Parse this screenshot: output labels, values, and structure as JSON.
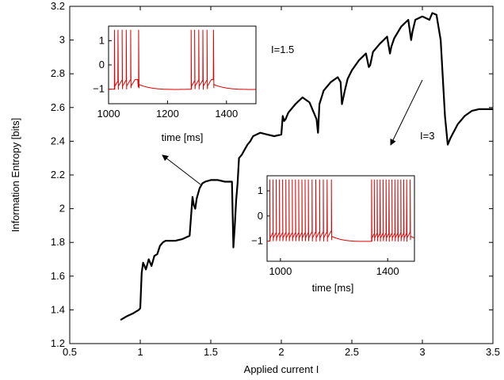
{
  "chart_data": [
    {
      "type": "line",
      "title": "",
      "xlabel": "Applied current I",
      "ylabel": "Information Entropy [bits]",
      "xlim": [
        0.5,
        3.5
      ],
      "ylim": [
        1.2,
        3.2
      ],
      "xticks": [
        "0.5",
        "1",
        "1.5",
        "2",
        "2.5",
        "3",
        "3.5"
      ],
      "yticks": [
        "1.2",
        "1.4",
        "1.6",
        "1.8",
        "2",
        "2.2",
        "2.4",
        "2.6",
        "2.8",
        "3",
        "3.2"
      ],
      "grid": false,
      "line_color": "#000000",
      "x": [
        0.86,
        0.9,
        0.95,
        0.99,
        1.0,
        1.01,
        1.02,
        1.04,
        1.06,
        1.08,
        1.1,
        1.12,
        1.14,
        1.16,
        1.18,
        1.2,
        1.22,
        1.24,
        1.25,
        1.3,
        1.35,
        1.37,
        1.38,
        1.39,
        1.4,
        1.42,
        1.44,
        1.46,
        1.5,
        1.55,
        1.6,
        1.65,
        1.66,
        1.67,
        1.68,
        1.69,
        1.7,
        1.72,
        1.74,
        1.76,
        1.78,
        1.8,
        1.85,
        1.9,
        1.95,
        2.0,
        2.01,
        2.02,
        2.03,
        2.05,
        2.1,
        2.15,
        2.2,
        2.25,
        2.26,
        2.27,
        2.3,
        2.35,
        2.4,
        2.42,
        2.43,
        2.45,
        2.47,
        2.5,
        2.55,
        2.6,
        2.62,
        2.63,
        2.65,
        2.7,
        2.75,
        2.77,
        2.78,
        2.8,
        2.85,
        2.9,
        2.92,
        2.93,
        2.95,
        3.0,
        3.05,
        3.07,
        3.1,
        3.13,
        3.16,
        3.18,
        3.2,
        3.25,
        3.3,
        3.35,
        3.4,
        3.45,
        3.5
      ],
      "y": [
        1.34,
        1.36,
        1.38,
        1.4,
        1.41,
        1.62,
        1.68,
        1.64,
        1.7,
        1.66,
        1.72,
        1.73,
        1.78,
        1.8,
        1.81,
        1.81,
        1.81,
        1.81,
        1.81,
        1.82,
        1.84,
        2.07,
        2.02,
        2.0,
        2.06,
        2.12,
        2.15,
        2.16,
        2.17,
        2.17,
        2.16,
        2.16,
        1.77,
        1.9,
        2.05,
        2.15,
        2.3,
        2.32,
        2.35,
        2.38,
        2.4,
        2.43,
        2.45,
        2.44,
        2.43,
        2.44,
        2.55,
        2.52,
        2.53,
        2.57,
        2.62,
        2.66,
        2.63,
        2.53,
        2.45,
        2.62,
        2.7,
        2.75,
        2.78,
        2.75,
        2.62,
        2.7,
        2.77,
        2.82,
        2.88,
        2.92,
        2.84,
        2.85,
        2.93,
        2.98,
        3.02,
        2.92,
        2.96,
        3.01,
        3.08,
        3.12,
        3.0,
        3.05,
        3.12,
        3.14,
        3.12,
        3.16,
        3.15,
        3.0,
        2.55,
        2.38,
        2.42,
        2.5,
        2.55,
        2.58,
        2.59,
        2.59,
        2.59
      ]
    },
    {
      "type": "line",
      "name": "inset-1",
      "xlabel": "time [ms]",
      "ylabel": "",
      "xlim": [
        1000,
        1500
      ],
      "ylim": [
        -1.6,
        1.6
      ],
      "xticks": [
        "1000",
        "1200",
        "1400"
      ],
      "yticks": [
        "1",
        "0",
        "−1"
      ],
      "line_color": "#dd0000",
      "annotation": "I=1.5",
      "burst_spikes_ms": [
        1020,
        1032,
        1046,
        1060,
        1075,
        1102,
        1280,
        1292,
        1306,
        1320,
        1334,
        1356
      ]
    },
    {
      "type": "line",
      "name": "inset-2",
      "xlabel": "time [ms]",
      "ylabel": "",
      "xlim": [
        950,
        1500
      ],
      "ylim": [
        -1.8,
        1.6
      ],
      "xticks": [
        "1000",
        "1400"
      ],
      "yticks": [
        "1",
        "0",
        "−1"
      ],
      "line_color": "#dd0000",
      "annotation": "I=3",
      "burst_spikes_ms": [
        960,
        972,
        984,
        996,
        1008,
        1020,
        1032,
        1044,
        1056,
        1068,
        1080,
        1092,
        1104,
        1118,
        1132,
        1146,
        1160,
        1174,
        1190,
        1340,
        1350,
        1361,
        1372,
        1383,
        1394,
        1405,
        1416,
        1427,
        1438,
        1449,
        1460,
        1471,
        1484
      ]
    }
  ]
}
